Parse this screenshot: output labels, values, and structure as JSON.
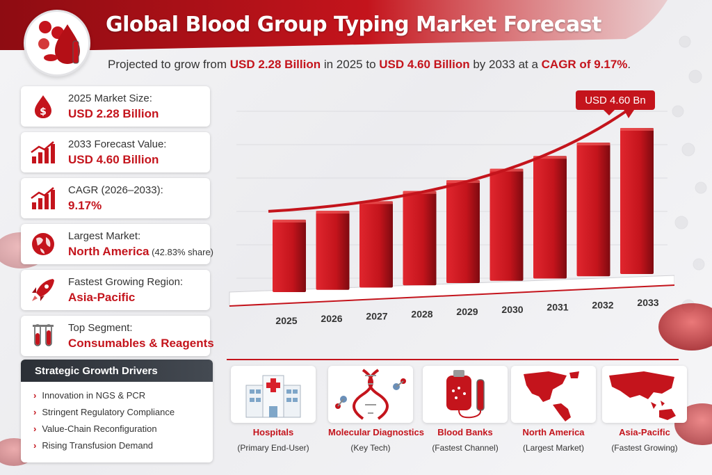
{
  "header": {
    "title": "Global Blood Group Typing Market Forecast",
    "subtitle_parts": [
      "Projected to grow from ",
      "USD 2.28 Billion",
      " in 2025 to ",
      "USD 4.60 Billion",
      " by 2033 at a ",
      "CAGR of 9.17%",
      "."
    ],
    "logo_icon": "blood-drop-logo-icon"
  },
  "cards": [
    {
      "label": "2025 Market Size:",
      "value": "USD 2.28 Billion",
      "note": "",
      "icon": "dollar-drop-icon"
    },
    {
      "label": "2033 Forecast Value:",
      "value": "USD 4.60 Billion",
      "note": "",
      "icon": "bar-growth-icon"
    },
    {
      "label": "CAGR (2026–2033):",
      "value": "9.17%",
      "note": "",
      "icon": "bar-growth-icon"
    },
    {
      "label": "Largest Market:",
      "value": "North America",
      "note": " (42.83% share)",
      "icon": "globe-icon"
    },
    {
      "label": "Fastest Growing Region:",
      "value": "Asia-Pacific",
      "note": "",
      "icon": "rocket-icon"
    },
    {
      "label": "Top Segment:",
      "value": "Consumables & Reagents",
      "note": "",
      "icon": "test-tubes-icon"
    }
  ],
  "drivers": {
    "title": "Strategic Growth Drivers",
    "items": [
      "Innovation in NGS & PCR",
      "Stringent Regulatory Compliance",
      "Value-Chain Reconfiguration",
      "Rising Transfusion Demand"
    ]
  },
  "chart_data": {
    "type": "bar",
    "categories": [
      "2025",
      "2026",
      "2027",
      "2028",
      "2029",
      "2030",
      "2031",
      "2032",
      "2033"
    ],
    "values": [
      2.28,
      2.49,
      2.72,
      2.97,
      3.24,
      3.53,
      3.86,
      4.21,
      4.6
    ],
    "unit": "USD Billion",
    "callout": "USD 4.60 Bn",
    "trend_arrow": true,
    "bar_color": "#c4141c"
  },
  "segments": [
    {
      "name": "Hospitals",
      "sub": "(Primary End-User)",
      "icon": "hospital-icon"
    },
    {
      "name": "Molecular Diagnostics",
      "sub": "(Key Tech)",
      "icon": "dna-icon"
    },
    {
      "name": "Blood Banks",
      "sub": "(Fastest Channel)",
      "icon": "blood-bag-icon"
    },
    {
      "name": "North America",
      "sub": "(Largest Market)",
      "icon": "north-america-map-icon"
    },
    {
      "name": "Asia-Pacific",
      "sub": "(Fastest Growing)",
      "icon": "asia-pacific-map-icon"
    }
  ],
  "colors": {
    "accent": "#c4141c",
    "dark": "#2b2f36"
  }
}
